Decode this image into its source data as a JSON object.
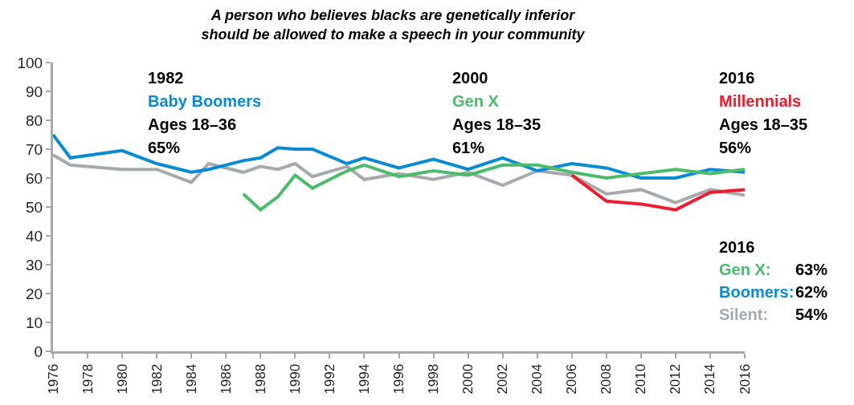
{
  "chart_data": {
    "type": "line",
    "title": "A person who believes blacks are genetically inferior\nshould be allowed to make a speech in your community",
    "xlim": [
      1976,
      2016
    ],
    "xticks": [
      1976,
      1978,
      1980,
      1982,
      1984,
      1986,
      1988,
      1990,
      1992,
      1994,
      1996,
      1998,
      2000,
      2002,
      2004,
      2006,
      2008,
      2010,
      2012,
      2014,
      2016
    ],
    "ylim": [
      0,
      100
    ],
    "yticks": [
      0,
      10,
      20,
      30,
      40,
      50,
      60,
      70,
      80,
      90,
      100
    ],
    "grid": false,
    "marker": "none",
    "line_style": "solid",
    "series": [
      {
        "color": "#a7a9ac",
        "x": [
          1976,
          1977,
          1980,
          1982,
          1984,
          1985,
          1987,
          1988,
          1989,
          1990,
          1991,
          1993,
          1994,
          1996,
          1998,
          2000,
          2002,
          2004,
          2006,
          2008,
          2010,
          2012,
          2014,
          2016
        ],
        "values": [
          68,
          64.5,
          63,
          63,
          58.5,
          65,
          62,
          64,
          63,
          65,
          60.5,
          64,
          59.5,
          61.5,
          59.5,
          62,
          57.5,
          62.5,
          61,
          54.5,
          56,
          51.5,
          56,
          54
        ]
      },
      {
        "color": "#0a8ad2",
        "x": [
          1976,
          1977,
          1980,
          1982,
          1984,
          1985,
          1987,
          1988,
          1989,
          1990,
          1991,
          1993,
          1994,
          1996,
          1998,
          2000,
          2002,
          2004,
          2006,
          2008,
          2010,
          2012,
          2014,
          2016
        ],
        "values": [
          75,
          67,
          69.5,
          65,
          62,
          63,
          66,
          67,
          70.5,
          70,
          70,
          65,
          67,
          63.5,
          66.5,
          63,
          67,
          62.5,
          65,
          63.5,
          60,
          60,
          63,
          62
        ]
      },
      {
        "color": "#4cbb6c",
        "x": [
          1987,
          1988,
          1989,
          1990,
          1991,
          1993,
          1994,
          1996,
          1998,
          2000,
          2002,
          2004,
          2006,
          2008,
          2010,
          2012,
          2014,
          2016
        ],
        "values": [
          54.5,
          49,
          53.5,
          61,
          56.5,
          62.5,
          64.5,
          60.5,
          62.5,
          61,
          64.5,
          64.5,
          62,
          60,
          61.5,
          63,
          61.5,
          63
        ]
      },
      {
        "color": "#ed1c2e",
        "x": [
          2006,
          2008,
          2010,
          2012,
          2014,
          2016
        ],
        "values": [
          61,
          52,
          51,
          49,
          55,
          56
        ]
      }
    ],
    "annotations": [
      "1982",
      "Baby Boomers",
      "Ages 18–36",
      "65%",
      "2000",
      "Gen X",
      "Ages 18–35",
      "61%",
      "2016",
      "Millennials",
      "Ages 18–35",
      "56%",
      "2016",
      "Gen X:",
      "63%",
      "Boomers:",
      "62%",
      "Silent:",
      "54%"
    ]
  }
}
